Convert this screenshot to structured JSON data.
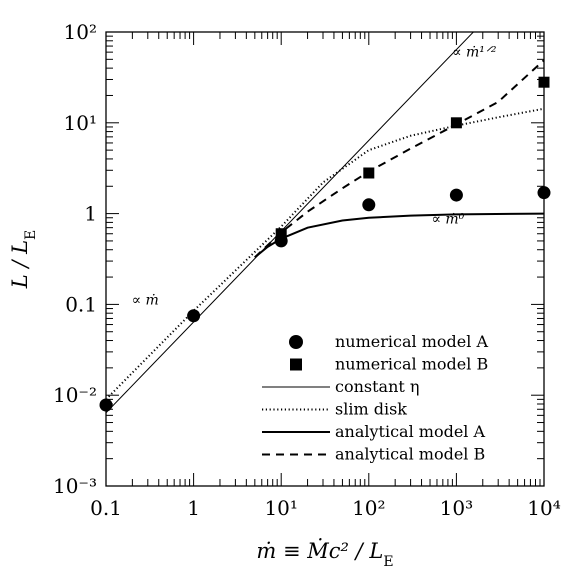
{
  "chart_data": {
    "type": "line",
    "xscale": "log",
    "yscale": "log",
    "xlim": [
      0.1,
      10000
    ],
    "ylim": [
      0.001,
      100
    ],
    "xlabel": "ṁ ≡ Ṁc²/L_E",
    "ylabel": "L/L_E",
    "x_ticks": [
      "0.1",
      "1",
      "10¹",
      "10²",
      "10³",
      "10⁴"
    ],
    "y_ticks": [
      "10⁻³",
      "10⁻²",
      "0.1",
      "1",
      "10¹",
      "10²"
    ],
    "legend_position": "bottom-right",
    "series": [
      {
        "name": "numerical model A",
        "style": "circle-marker",
        "points": [
          {
            "x": 0.1,
            "y": 0.0078
          },
          {
            "x": 1,
            "y": 0.075
          },
          {
            "x": 10,
            "y": 0.5
          },
          {
            "x": 100,
            "y": 1.25
          },
          {
            "x": 1000,
            "y": 1.6
          },
          {
            "x": 10000,
            "y": 1.7
          }
        ]
      },
      {
        "name": "numerical model B",
        "style": "square-marker",
        "points": [
          {
            "x": 10,
            "y": 0.6
          },
          {
            "x": 100,
            "y": 2.8
          },
          {
            "x": 1000,
            "y": 10
          },
          {
            "x": 10000,
            "y": 28
          }
        ]
      },
      {
        "name": "constant η",
        "style": "thin-solid",
        "points": [
          {
            "x": 0.1,
            "y": 0.0064
          },
          {
            "x": 10000,
            "y": 640
          }
        ]
      },
      {
        "name": "slim disk",
        "style": "dotted",
        "points": [
          {
            "x": 0.1,
            "y": 0.009
          },
          {
            "x": 1,
            "y": 0.085
          },
          {
            "x": 10,
            "y": 0.72
          },
          {
            "x": 30,
            "y": 2.2
          },
          {
            "x": 100,
            "y": 5
          },
          {
            "x": 300,
            "y": 7.2
          },
          {
            "x": 1000,
            "y": 9.3
          },
          {
            "x": 3000,
            "y": 11.5
          },
          {
            "x": 10000,
            "y": 14.3
          }
        ]
      },
      {
        "name": "analytical model A",
        "style": "thick-solid",
        "points": [
          {
            "x": 5,
            "y": 0.33
          },
          {
            "x": 7,
            "y": 0.43
          },
          {
            "x": 10,
            "y": 0.53
          },
          {
            "x": 20,
            "y": 0.7
          },
          {
            "x": 50,
            "y": 0.84
          },
          {
            "x": 100,
            "y": 0.9
          },
          {
            "x": 300,
            "y": 0.95
          },
          {
            "x": 1000,
            "y": 0.98
          },
          {
            "x": 10000,
            "y": 1.0
          }
        ]
      },
      {
        "name": "analytical model B",
        "style": "dashed",
        "points": [
          {
            "x": 5,
            "y": 0.33
          },
          {
            "x": 10,
            "y": 0.62
          },
          {
            "x": 20,
            "y": 1.05
          },
          {
            "x": 50,
            "y": 1.9
          },
          {
            "x": 100,
            "y": 2.9
          },
          {
            "x": 300,
            "y": 5.2
          },
          {
            "x": 1000,
            "y": 9.6
          },
          {
            "x": 3000,
            "y": 17
          },
          {
            "x": 10000,
            "y": 49
          }
        ]
      }
    ],
    "annotations": [
      {
        "text": "∝ ṁ",
        "x": 0.28,
        "y": 0.1
      },
      {
        "text": "∝ ṁ⁰",
        "x": 800,
        "y": 0.78
      },
      {
        "text": "∝ ṁ¹ᐟ²",
        "x": 1600,
        "y": 54
      }
    ]
  }
}
